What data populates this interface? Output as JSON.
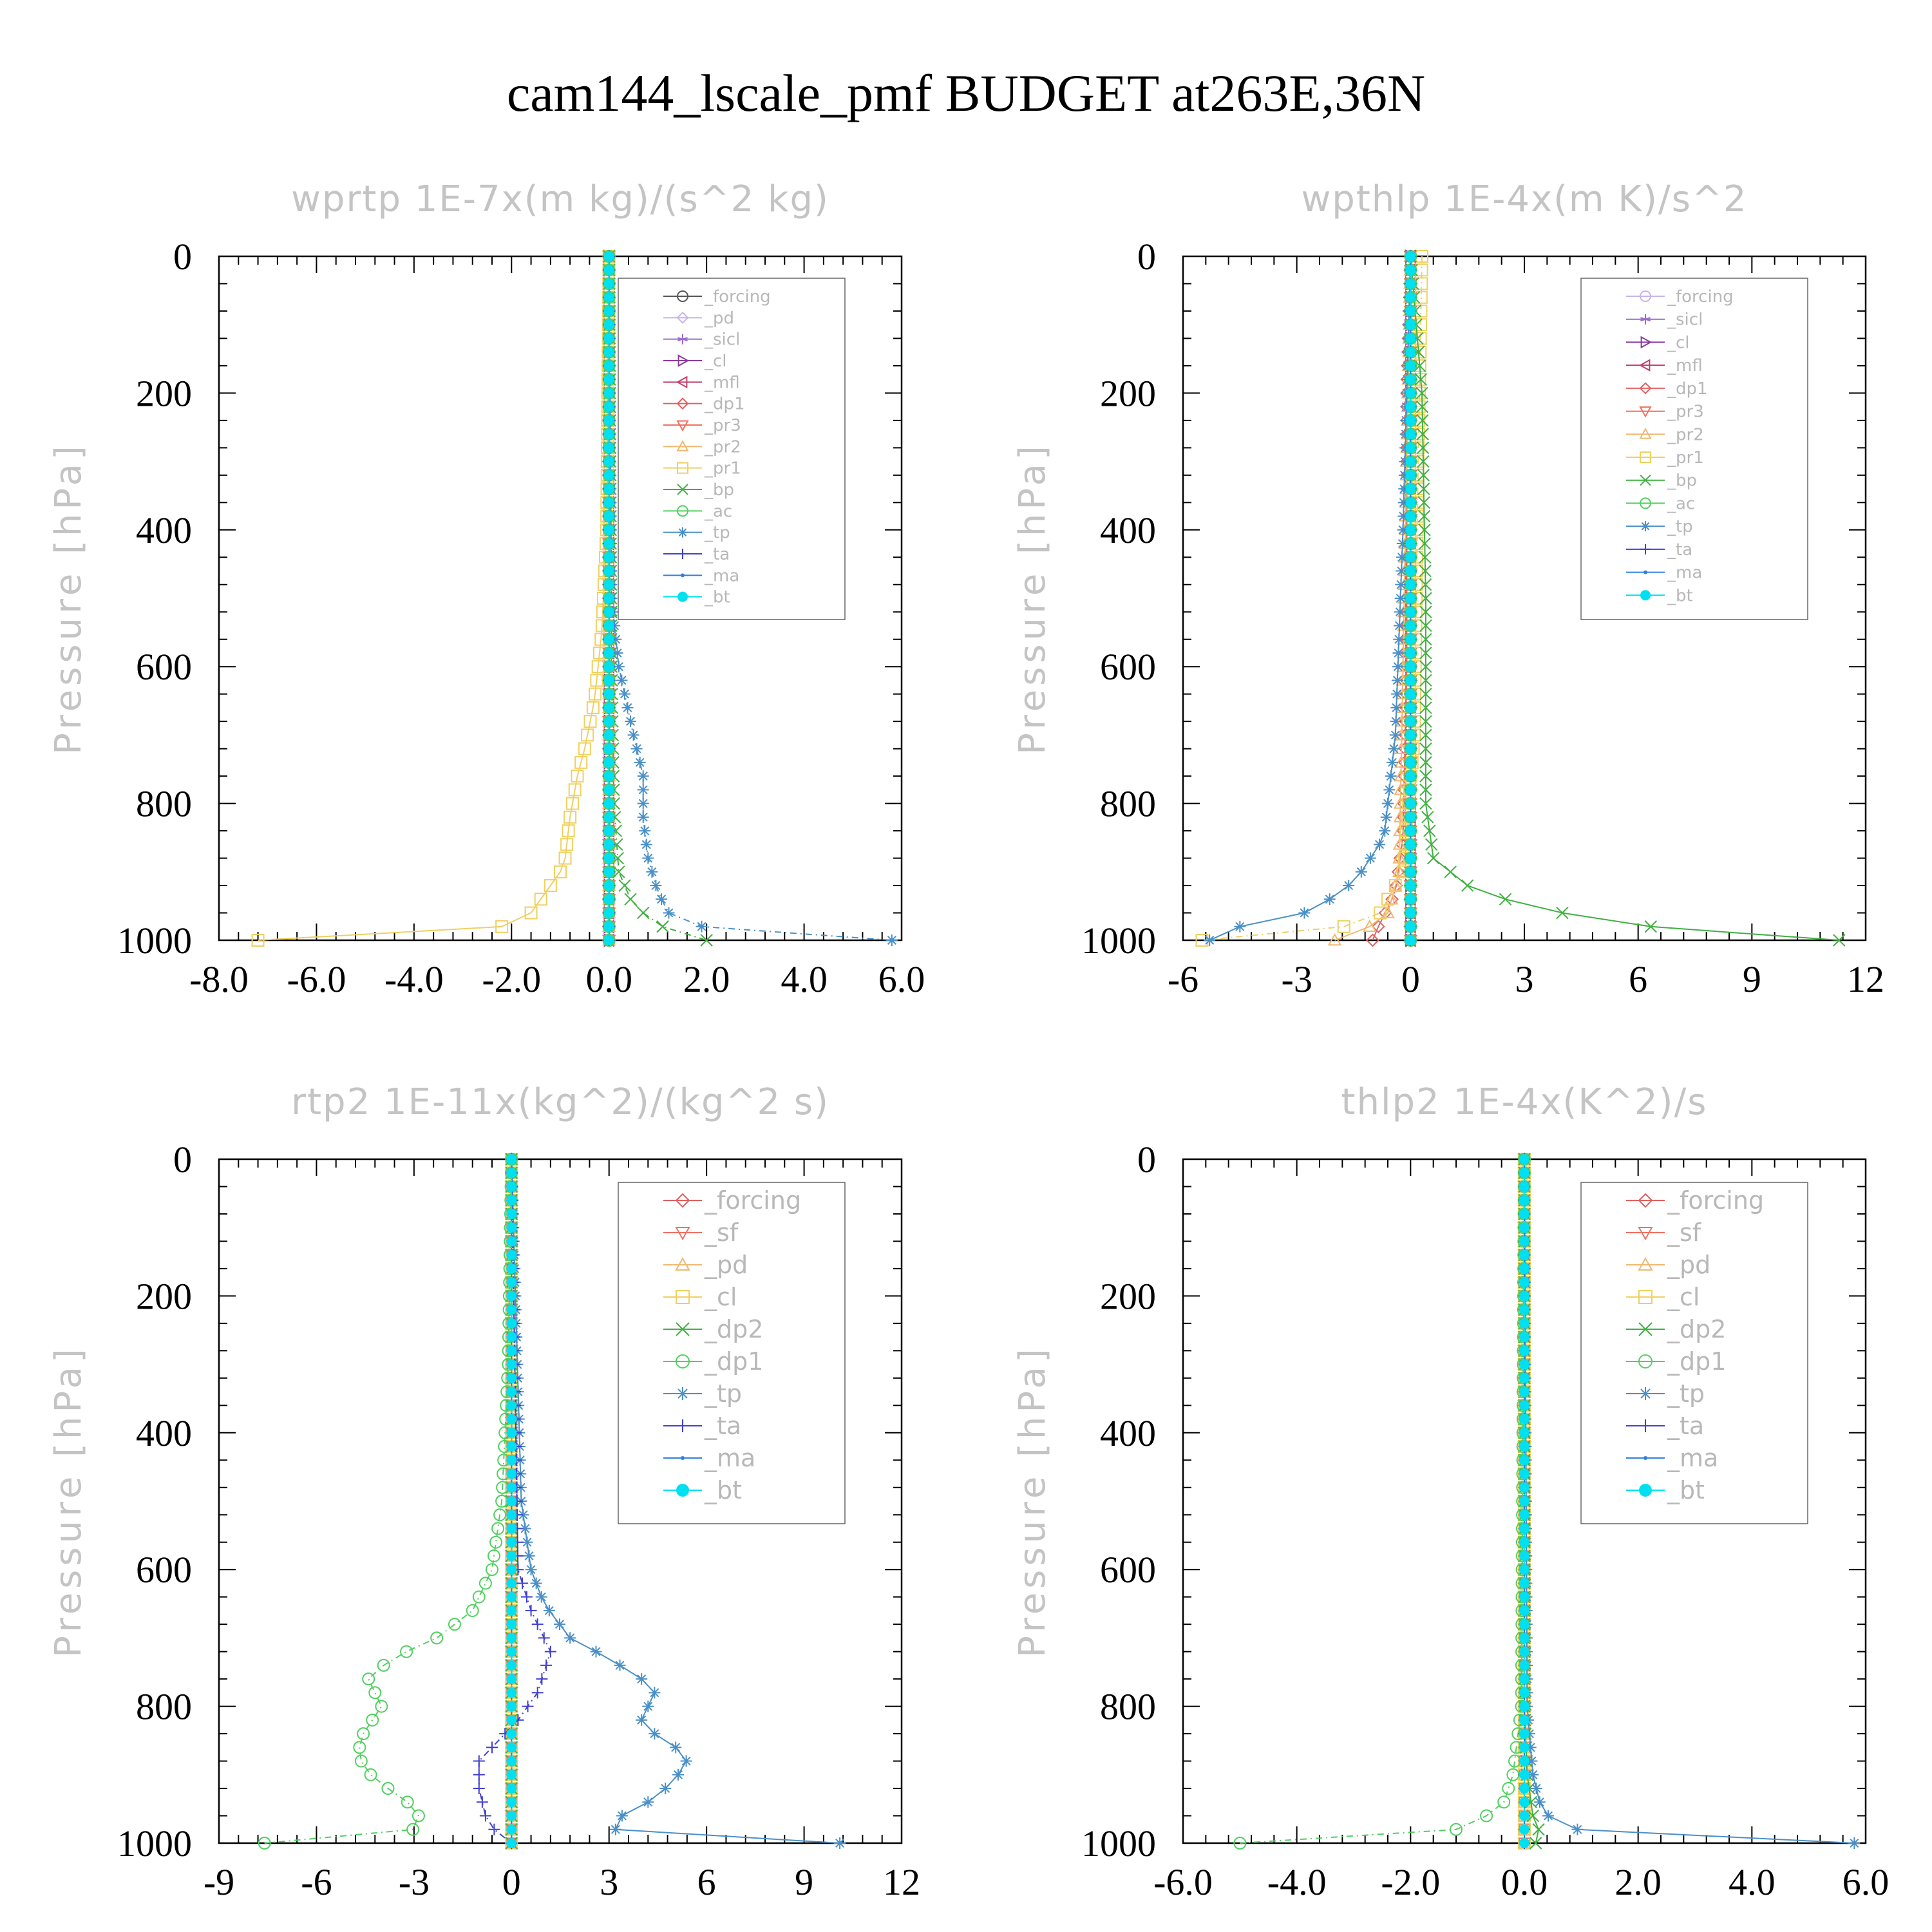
{
  "title": "cam144_lscale_pmf  BUDGET at263E,36N",
  "chart_data": [
    {
      "type": "line",
      "title": "wprtp  1E-7x(m kg)/(s^2 kg)",
      "ylabel": "Pressure [hPa]",
      "xlim": [
        -8,
        6
      ],
      "ylim": [
        1000,
        0
      ],
      "xticks": [
        "-8.0",
        "-6.0",
        "-4.0",
        "-2.0",
        "0.0",
        "2.0",
        "4.0",
        "6.0"
      ],
      "xtick_values": [
        -8,
        -6,
        -4,
        -2,
        0,
        2,
        4,
        6
      ],
      "yticks": [
        "0",
        "200",
        "400",
        "600",
        "800",
        "1000"
      ],
      "ytick_values": [
        0,
        200,
        400,
        600,
        800,
        1000
      ],
      "legend_position": "top-right",
      "grid": false,
      "series": [
        {
          "name": "_forcing",
          "color": "#555555",
          "marker": "circle"
        },
        {
          "name": "_pd",
          "color": "#c8b4e8",
          "marker": "diamond"
        },
        {
          "name": "_sicl",
          "color": "#9a6bd1",
          "marker": "star"
        },
        {
          "name": "_cl",
          "color": "#8a3a9a",
          "marker": "tri-right"
        },
        {
          "name": "_mfl",
          "color": "#c0406a",
          "marker": "tri-left"
        },
        {
          "name": "_dp1",
          "color": "#e06060",
          "marker": "diamond"
        },
        {
          "name": "_pr3",
          "color": "#f07060",
          "marker": "tri-down"
        },
        {
          "name": "_pr2",
          "color": "#f0b870",
          "marker": "tri-up"
        },
        {
          "name": "_pr1",
          "color": "#f0d060",
          "marker": "square",
          "points": [
            [
              0,
              0
            ],
            [
              -0.05,
              400
            ],
            [
              -0.15,
              550
            ],
            [
              -0.3,
              650
            ],
            [
              -0.5,
              720
            ],
            [
              -0.65,
              760
            ],
            [
              -0.8,
              820
            ],
            [
              -0.9,
              880
            ],
            [
              -1.0,
              900
            ],
            [
              -1.3,
              930
            ],
            [
              -1.6,
              960
            ],
            [
              -2.2,
              980
            ],
            [
              -3.5,
              990
            ],
            [
              -7.2,
              995
            ]
          ]
        },
        {
          "name": "_bp",
          "color": "#40b040",
          "marker": "x",
          "points": [
            [
              0,
              0
            ],
            [
              0.05,
              600
            ],
            [
              0.1,
              800
            ],
            [
              0.2,
              900
            ],
            [
              0.5,
              950
            ],
            [
              1.2,
              985
            ],
            [
              2.0,
              998
            ]
          ]
        },
        {
          "name": "_ac",
          "color": "#50d060",
          "marker": "circle"
        },
        {
          "name": "_tp",
          "color": "#4a90c8",
          "marker": "asterisk",
          "points": [
            [
              0,
              0
            ],
            [
              0.05,
              500
            ],
            [
              0.2,
              600
            ],
            [
              0.5,
              700
            ],
            [
              0.7,
              760
            ],
            [
              0.7,
              820
            ],
            [
              0.8,
              880
            ],
            [
              1.0,
              930
            ],
            [
              1.3,
              970
            ],
            [
              2.5,
              990
            ],
            [
              5.8,
              995
            ]
          ]
        },
        {
          "name": "_ta",
          "color": "#4040d0",
          "marker": "plus"
        },
        {
          "name": "_ma",
          "color": "#3080e0",
          "marker": "dot"
        },
        {
          "name": "_bt",
          "color": "#00e0f0",
          "marker": "filled-circle"
        }
      ]
    },
    {
      "type": "line",
      "title": "wpthlp  1E-4x(m K)/s^2",
      "ylabel": "Pressure [hPa]",
      "xlim": [
        -6,
        12
      ],
      "ylim": [
        1000,
        0
      ],
      "xticks": [
        "-6",
        "-3",
        "0",
        "3",
        "6",
        "9",
        "12"
      ],
      "xtick_values": [
        -6,
        -3,
        0,
        3,
        6,
        9,
        12
      ],
      "yticks": [
        "0",
        "200",
        "400",
        "600",
        "800",
        "1000"
      ],
      "ytick_values": [
        0,
        200,
        400,
        600,
        800,
        1000
      ],
      "legend_position": "top-right",
      "grid": false,
      "series": [
        {
          "name": "_forcing",
          "color": "#c8b4e8",
          "marker": "circle"
        },
        {
          "name": "_sicl",
          "color": "#9a6bd1",
          "marker": "star"
        },
        {
          "name": "_cl",
          "color": "#8a3a9a",
          "marker": "tri-right"
        },
        {
          "name": "_mfl",
          "color": "#c0406a",
          "marker": "tri-left"
        },
        {
          "name": "_dp1",
          "color": "#e06060",
          "marker": "diamond",
          "points": [
            [
              0,
              0
            ],
            [
              -0.1,
              200
            ],
            [
              -0.1,
              600
            ],
            [
              -0.2,
              850
            ],
            [
              -0.4,
              930
            ],
            [
              -0.8,
              975
            ],
            [
              -1.0,
              995
            ]
          ]
        },
        {
          "name": "_pr3",
          "color": "#f07060",
          "marker": "tri-down"
        },
        {
          "name": "_pr2",
          "color": "#f0b870",
          "marker": "tri-up",
          "points": [
            [
              0,
              0
            ],
            [
              -0.3,
              900
            ],
            [
              -0.6,
              960
            ],
            [
              -1.2,
              985
            ],
            [
              -2.0,
              995
            ]
          ]
        },
        {
          "name": "_pr1",
          "color": "#f0d060",
          "marker": "square",
          "points": [
            [
              0.3,
              0
            ],
            [
              0.2,
              300
            ],
            [
              0.1,
              700
            ],
            [
              -0.2,
              900
            ],
            [
              -0.8,
              960
            ],
            [
              -2.0,
              985
            ],
            [
              -5.5,
              995
            ]
          ]
        },
        {
          "name": "_bp",
          "color": "#40b040",
          "marker": "x",
          "points": [
            [
              0,
              0
            ],
            [
              0.3,
              200
            ],
            [
              0.4,
              500
            ],
            [
              0.4,
              800
            ],
            [
              0.6,
              880
            ],
            [
              1.5,
              920
            ],
            [
              3.0,
              950
            ],
            [
              5.5,
              975
            ],
            [
              8.0,
              990
            ],
            [
              11.3,
              995
            ]
          ]
        },
        {
          "name": "_ac",
          "color": "#50d060",
          "marker": "circle"
        },
        {
          "name": "_tp",
          "color": "#4a90c8",
          "marker": "asterisk",
          "points": [
            [
              0,
              0
            ],
            [
              -0.2,
              400
            ],
            [
              -0.4,
              700
            ],
            [
              -0.7,
              850
            ],
            [
              -1.3,
              900
            ],
            [
              -1.8,
              930
            ],
            [
              -2.8,
              960
            ],
            [
              -4.5,
              980
            ],
            [
              -5.3,
              995
            ]
          ]
        },
        {
          "name": "_ta",
          "color": "#4040d0",
          "marker": "plus"
        },
        {
          "name": "_ma",
          "color": "#3080e0",
          "marker": "dot"
        },
        {
          "name": "_bt",
          "color": "#00e0f0",
          "marker": "filled-circle"
        }
      ]
    },
    {
      "type": "line",
      "title": "rtp2  1E-11x(kg^2)/(kg^2 s)",
      "ylabel": "Pressure [hPa]",
      "xlim": [
        -9,
        12
      ],
      "ylim": [
        1000,
        0
      ],
      "xticks": [
        "-9",
        "-6",
        "-3",
        "0",
        "3",
        "6",
        "9",
        "12"
      ],
      "xtick_values": [
        -9,
        -6,
        -3,
        0,
        3,
        6,
        9,
        12
      ],
      "yticks": [
        "0",
        "200",
        "400",
        "600",
        "800",
        "1000"
      ],
      "ytick_values": [
        0,
        200,
        400,
        600,
        800,
        1000
      ],
      "legend_position": "top-right",
      "grid": false,
      "series": [
        {
          "name": "_forcing",
          "color": "#e06060",
          "marker": "diamond"
        },
        {
          "name": "_sf",
          "color": "#f07060",
          "marker": "tri-down"
        },
        {
          "name": "_pd",
          "color": "#f0b870",
          "marker": "tri-up"
        },
        {
          "name": "_cl",
          "color": "#f0d060",
          "marker": "square"
        },
        {
          "name": "_dp2",
          "color": "#40b040",
          "marker": "x"
        },
        {
          "name": "_dp1",
          "color": "#50d060",
          "marker": "circle",
          "points": [
            [
              0,
              0
            ],
            [
              -0.1,
              300
            ],
            [
              -0.3,
              500
            ],
            [
              -0.6,
              600
            ],
            [
              -1.2,
              660
            ],
            [
              -2.3,
              700
            ],
            [
              -3.7,
              730
            ],
            [
              -4.4,
              760
            ],
            [
              -4.0,
              800
            ],
            [
              -4.7,
              850
            ],
            [
              -4.6,
              890
            ],
            [
              -3.8,
              920
            ],
            [
              -2.9,
              950
            ],
            [
              -2.8,
              975
            ],
            [
              -3.5,
              990
            ],
            [
              -7.6,
              995
            ]
          ]
        },
        {
          "name": "_tp",
          "color": "#4a90c8",
          "marker": "asterisk",
          "points": [
            [
              0,
              0
            ],
            [
              0.3,
              500
            ],
            [
              0.6,
              600
            ],
            [
              1.0,
              650
            ],
            [
              1.8,
              700
            ],
            [
              3.0,
              730
            ],
            [
              4.0,
              760
            ],
            [
              4.4,
              780
            ],
            [
              4.0,
              820
            ],
            [
              4.6,
              850
            ],
            [
              5.5,
              870
            ],
            [
              5.0,
              910
            ],
            [
              4.2,
              940
            ],
            [
              3.0,
              970
            ],
            [
              3.4,
              990
            ],
            [
              10.1,
              995
            ]
          ]
        },
        {
          "name": "_ta",
          "color": "#4040d0",
          "marker": "plus",
          "points": [
            [
              0,
              0
            ],
            [
              0.2,
              600
            ],
            [
              0.6,
              660
            ],
            [
              1.2,
              720
            ],
            [
              0.8,
              780
            ],
            [
              0.2,
              820
            ],
            [
              -0.6,
              860
            ],
            [
              -1.0,
              880
            ],
            [
              -1.0,
              920
            ],
            [
              -0.8,
              960
            ],
            [
              -0.4,
              990
            ],
            [
              0,
              998
            ]
          ]
        },
        {
          "name": "_ma",
          "color": "#3080e0",
          "marker": "dot"
        },
        {
          "name": "_bt",
          "color": "#00e0f0",
          "marker": "filled-circle"
        }
      ]
    },
    {
      "type": "line",
      "title": "thlp2  1E-4x(K^2)/s",
      "ylabel": "Pressure [hPa]",
      "xlim": [
        -6,
        6
      ],
      "ylim": [
        1000,
        0
      ],
      "xticks": [
        "-6.0",
        "-4.0",
        "-2.0",
        "0.0",
        "2.0",
        "4.0",
        "6.0"
      ],
      "xtick_values": [
        -6,
        -4,
        -2,
        0,
        2,
        4,
        6
      ],
      "yticks": [
        "0",
        "200",
        "400",
        "600",
        "800",
        "1000"
      ],
      "ytick_values": [
        0,
        200,
        400,
        600,
        800,
        1000
      ],
      "legend_position": "top-right",
      "grid": false,
      "series": [
        {
          "name": "_forcing",
          "color": "#e06060",
          "marker": "diamond"
        },
        {
          "name": "_sf",
          "color": "#f07060",
          "marker": "tri-down"
        },
        {
          "name": "_pd",
          "color": "#f0b870",
          "marker": "tri-up"
        },
        {
          "name": "_cl",
          "color": "#f0d060",
          "marker": "square"
        },
        {
          "name": "_dp2",
          "color": "#40b040",
          "marker": "x",
          "points": [
            [
              0,
              0
            ],
            [
              0,
              800
            ],
            [
              0.05,
              900
            ],
            [
              0.15,
              960
            ],
            [
              0.3,
              990
            ],
            [
              0.2,
              998
            ]
          ]
        },
        {
          "name": "_dp1",
          "color": "#50d060",
          "marker": "circle",
          "points": [
            [
              0,
              0
            ],
            [
              -0.05,
              800
            ],
            [
              -0.2,
              900
            ],
            [
              -0.4,
              950
            ],
            [
              -1.2,
              980
            ],
            [
              -2.5,
              990
            ],
            [
              -5.0,
              995
            ]
          ]
        },
        {
          "name": "_tp",
          "color": "#4a90c8",
          "marker": "asterisk",
          "points": [
            [
              0,
              0
            ],
            [
              0.05,
              800
            ],
            [
              0.15,
              900
            ],
            [
              0.3,
              950
            ],
            [
              0.6,
              975
            ],
            [
              1.6,
              990
            ],
            [
              5.8,
              995
            ]
          ]
        },
        {
          "name": "_ta",
          "color": "#4040d0",
          "marker": "plus"
        },
        {
          "name": "_ma",
          "color": "#3080e0",
          "marker": "dot"
        },
        {
          "name": "_bt",
          "color": "#00e0f0",
          "marker": "filled-circle"
        }
      ]
    }
  ]
}
